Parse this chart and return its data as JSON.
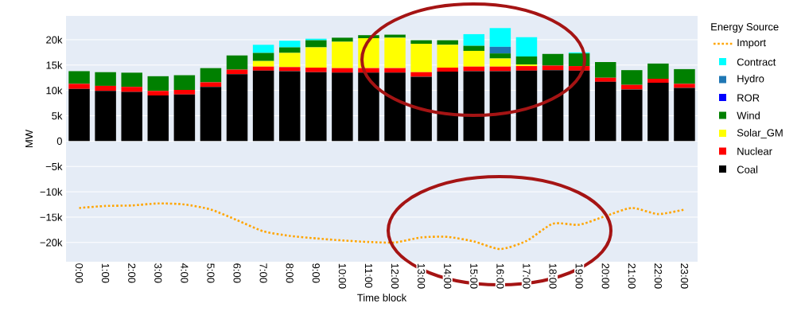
{
  "chart_data": {
    "type": "bar",
    "stacked": true,
    "xlabel": "Time block",
    "ylabel": "MW",
    "legend_title": "Energy Source",
    "legend": "right",
    "grid": "y",
    "categories": [
      "0:00",
      "1:00",
      "2:00",
      "3:00",
      "4:00",
      "5:00",
      "6:00",
      "7:00",
      "8:00",
      "9:00",
      "10:00",
      "11:00",
      "12:00",
      "13:00",
      "14:00",
      "15:00",
      "16:00",
      "17:00",
      "18:00",
      "19:00",
      "20:00",
      "21:00",
      "22:00",
      "23:00"
    ],
    "ylim": [
      -23800,
      24700
    ],
    "yticks": [
      {
        "value": -20000,
        "label": "−20k"
      },
      {
        "value": -15000,
        "label": "−15k"
      },
      {
        "value": -10000,
        "label": "−10k"
      },
      {
        "value": -5000,
        "label": "−5k"
      },
      0,
      {
        "value": 5000,
        "label": "5k"
      },
      {
        "value": 10000,
        "label": "10k"
      },
      {
        "value": 15000,
        "label": "15k"
      },
      {
        "value": 20000,
        "label": "20k"
      }
    ],
    "series": [
      {
        "name": "Coal",
        "color": "#000000",
        "values": [
          10300,
          9900,
          9700,
          9000,
          9200,
          10700,
          13200,
          13900,
          13800,
          13600,
          13500,
          13500,
          13500,
          12700,
          13700,
          13800,
          13800,
          13900,
          14000,
          13900,
          11700,
          10200,
          11500,
          10500
        ]
      },
      {
        "name": "Nuclear",
        "color": "#ff0000",
        "values": [
          1000,
          1000,
          1000,
          900,
          900,
          900,
          900,
          800,
          800,
          900,
          900,
          900,
          900,
          900,
          800,
          900,
          900,
          900,
          900,
          900,
          800,
          900,
          800,
          800
        ]
      },
      {
        "name": "Solar_GM",
        "color": "#ffff00",
        "values": [
          0,
          0,
          0,
          0,
          0,
          0,
          0,
          1100,
          2800,
          4000,
          5200,
          5900,
          6000,
          5600,
          4500,
          3100,
          1600,
          300,
          0,
          0,
          0,
          0,
          0,
          0
        ]
      },
      {
        "name": "Wind",
        "color": "#008000",
        "values": [
          2500,
          2700,
          2800,
          2900,
          2900,
          2800,
          2800,
          1600,
          1100,
          1400,
          800,
          600,
          600,
          700,
          900,
          1000,
          1000,
          1600,
          2300,
          2500,
          3100,
          2900,
          3000,
          2900
        ]
      },
      {
        "name": "ROR",
        "color": "#0000ff",
        "values": [
          0,
          0,
          0,
          0,
          0,
          0,
          0,
          0,
          0,
          0,
          0,
          0,
          0,
          0,
          0,
          0,
          0,
          0,
          0,
          0,
          0,
          0,
          0,
          0
        ]
      },
      {
        "name": "Hydro",
        "color": "#1f77b4",
        "values": [
          0,
          0,
          0,
          0,
          0,
          0,
          0,
          0,
          0,
          0,
          0,
          0,
          0,
          0,
          0,
          0,
          1300,
          0,
          0,
          0,
          0,
          0,
          0,
          0
        ]
      },
      {
        "name": "Contract",
        "color": "#00ffff",
        "values": [
          0,
          0,
          0,
          0,
          0,
          0,
          0,
          1600,
          1300,
          300,
          0,
          0,
          0,
          0,
          0,
          2300,
          3700,
          3800,
          0,
          200,
          0,
          0,
          0,
          0
        ]
      },
      {
        "name": "Import",
        "type": "line",
        "line_style": "dotted",
        "color": "#ffa500",
        "values": [
          -13200,
          -12800,
          -12700,
          -12300,
          -12500,
          -13500,
          -15600,
          -17800,
          -18700,
          -19200,
          -19600,
          -19900,
          -20000,
          -19000,
          -18900,
          -19800,
          -21300,
          -19700,
          -16300,
          -16500,
          -14800,
          -13200,
          -14400,
          -13500
        ]
      }
    ]
  }
}
